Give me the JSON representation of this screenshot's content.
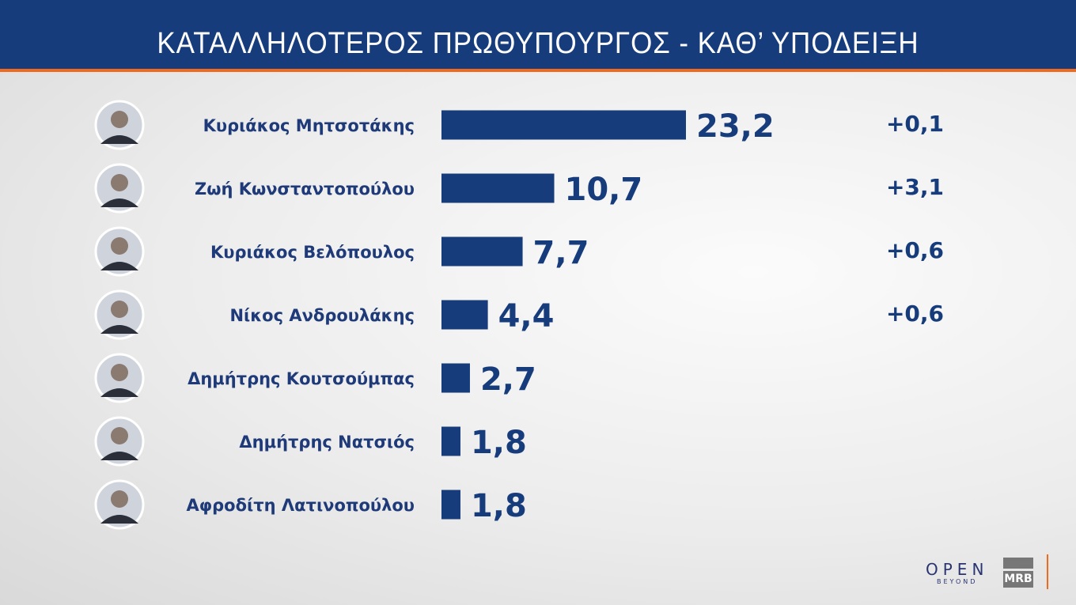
{
  "title": "ΚΑΤΑΛΛΗΛΟΤΕΡΟΣ  ΠΡΩΘΥΠΟΥΡΓΟΣ - ΚΑΘ’ ΥΠΟΔΕΙΞΗ",
  "chart_data": {
    "type": "bar",
    "orientation": "horizontal",
    "title": "ΚΑΤΑΛΛΗΛΟΤΕΡΟΣ  ΠΡΩΘΥΠΟΥΡΓΟΣ - ΚΑΘ’ ΥΠΟΔΕΙΞΗ",
    "categories": [
      "Κυριάκος Μητσοτάκης",
      "Ζωή Κωνσταντοπούλου",
      "Κυριάκος Βελόπουλος",
      "Νίκος Ανδρουλάκης",
      "Δημήτρης Κουτσούμπας",
      "Δημήτρης Νατσιός",
      "Αφροδίτη Λατινοπούλου"
    ],
    "values": [
      23.2,
      10.7,
      7.7,
      4.4,
      2.7,
      1.8,
      1.8
    ],
    "value_labels": [
      "23,2",
      "10,7",
      "7,7",
      "4,4",
      "2,7",
      "1,8",
      "1,8"
    ],
    "changes": [
      "+0,1",
      "+3,1",
      "+0,6",
      "+0,6",
      "",
      "",
      ""
    ],
    "bar_color": "#173c7c",
    "grid": false
  },
  "logos": {
    "open": "OPEN",
    "open_sub": "BEYOND",
    "mrb": "MRB"
  },
  "colors": {
    "header": "#173c7c",
    "accent": "#f06a1e"
  }
}
